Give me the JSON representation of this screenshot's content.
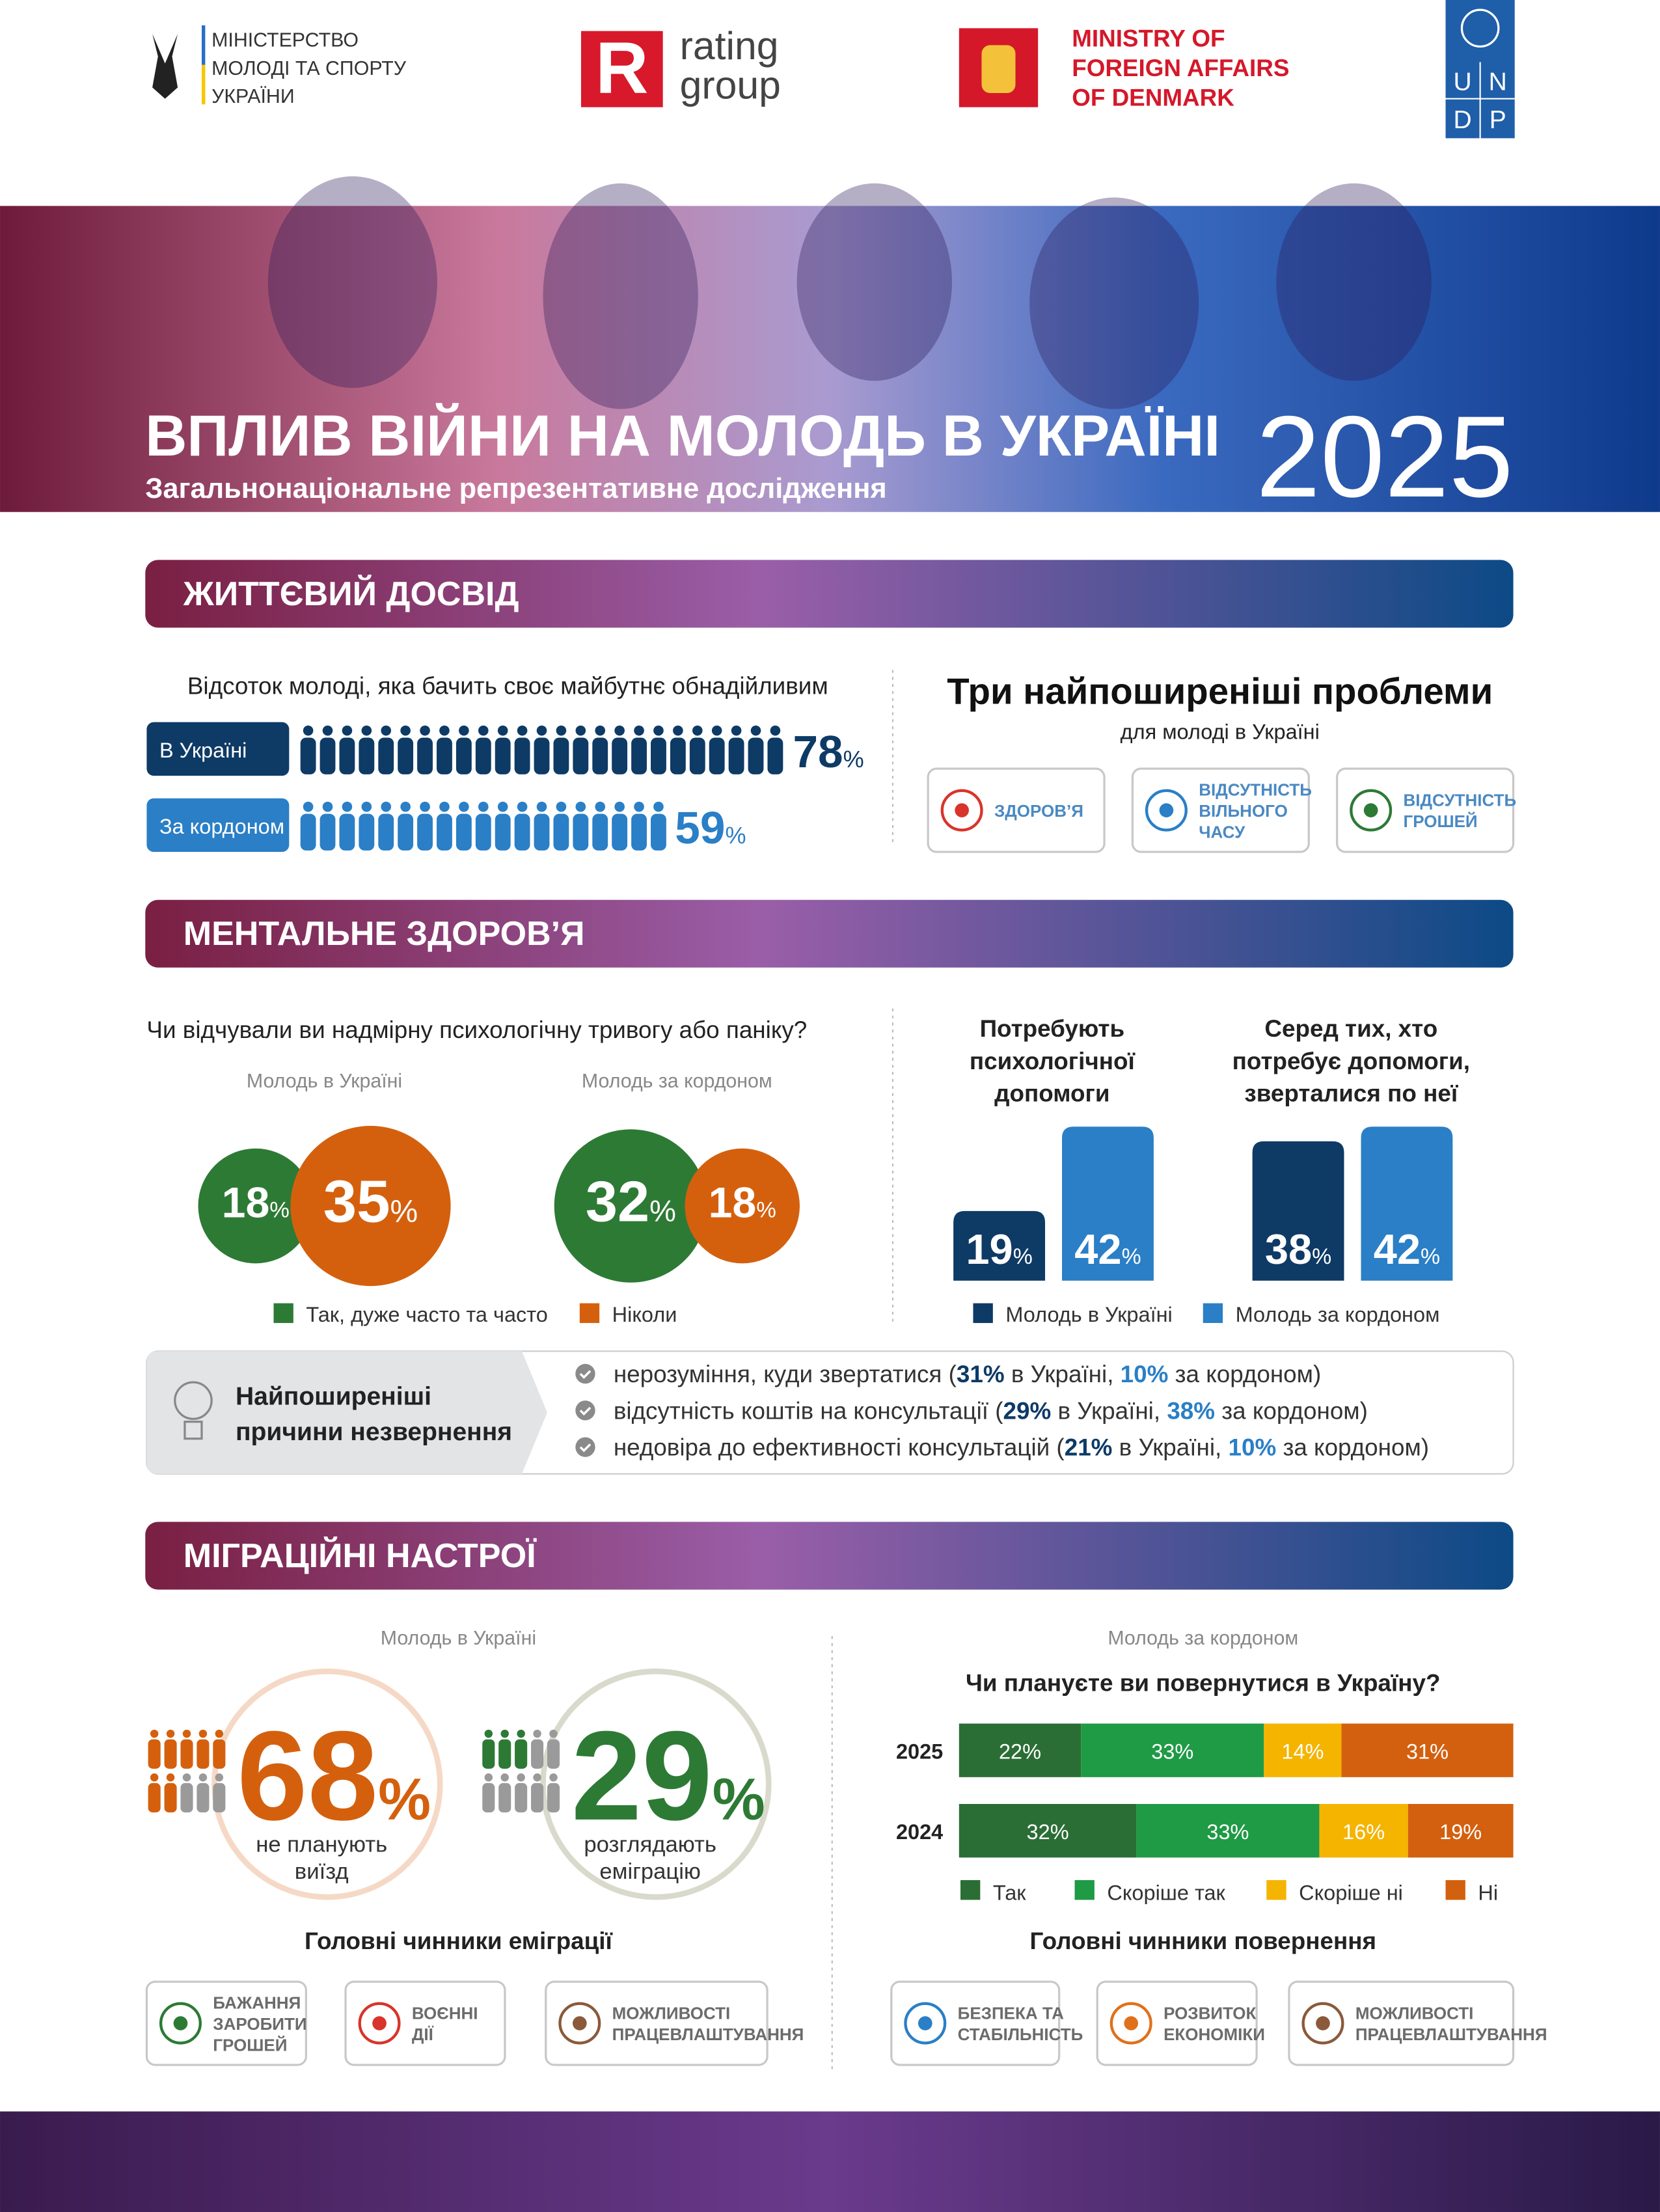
{
  "header": {
    "ministry": [
      "МІНІСТЕРСТВО",
      "МОЛОДІ ТА СПОРТУ",
      "УКРАЇНИ"
    ],
    "rating_mark": "R",
    "rating": [
      "rating",
      "group"
    ],
    "denmark": [
      "MINISTRY OF",
      "FOREIGN AFFAIRS",
      "OF DENMARK"
    ],
    "undp": [
      "U",
      "N",
      "D",
      "P"
    ]
  },
  "hero": {
    "title": "ВПЛИВ ВІЙНИ НА МОЛОДЬ В УКРАЇНІ",
    "subtitle": "Загальнонаціональне репрезентативне дослідження",
    "year": "2025"
  },
  "percent_sign": "%",
  "life": {
    "heading": "ЖИТТЄВИЙ ДОСВІД",
    "hope": {
      "title": "Відсоток молоді, яка бачить своє майбутнє обнадійливим",
      "rows": [
        {
          "label": "В Україні",
          "value": 78,
          "color": "#0e3a66"
        },
        {
          "label": "За кордоном",
          "value": 59,
          "color": "#2a7fc6"
        }
      ]
    },
    "problems": {
      "title": "Три найпоширеніші проблеми",
      "subtitle": "для молоді в Україні",
      "items": [
        [
          "ЗДОРОВ’Я"
        ],
        [
          "ВІДСУТНІСТЬ",
          "ВІЛЬНОГО",
          "ЧАСУ"
        ],
        [
          "ВІДСУТНІСТЬ",
          "ГРОШЕЙ"
        ]
      ]
    }
  },
  "mental": {
    "heading": "МЕНТАЛЬНЕ ЗДОРОВ’Я",
    "anxiety": {
      "question": "Чи відчували ви надмірну психологічну тривогу або паніку?",
      "groups": [
        {
          "name": "Молодь в Україні",
          "values": [
            18,
            35
          ]
        },
        {
          "name": "Молодь за кордоном",
          "values": [
            32,
            18
          ]
        }
      ],
      "legend": [
        {
          "name": "Так, дуже часто та часто",
          "color": "#2d7a35"
        },
        {
          "name": "Ніколи",
          "color": "#d4600e"
        }
      ]
    },
    "help": {
      "charts": [
        {
          "title": [
            "Потребують",
            "психологічної",
            "допомоги"
          ],
          "values": [
            19,
            42
          ]
        },
        {
          "title": [
            "Серед тих, хто",
            "потребує допомоги,",
            "зверталися по неї"
          ],
          "values": [
            38,
            42
          ]
        }
      ],
      "legend": [
        {
          "name": "Молодь в Україні",
          "color": "#0e3a66"
        },
        {
          "name": "Молодь за кордоном",
          "color": "#2a7fc6"
        }
      ]
    },
    "reasons": {
      "title": [
        "Найпоширеніші",
        "причини незвернення"
      ],
      "items": [
        {
          "lead": "нерозуміння, куди звертатися (",
          "ukraine": "31%",
          "ukraine_suffix": " в Україні, ",
          "abroad": "10%",
          "abroad_suffix": " за кордоном)"
        },
        {
          "lead": "відсутність коштів на консультації (",
          "ukraine": "29%",
          "ukraine_suffix": " в Україні, ",
          "abroad": "38%",
          "abroad_suffix": " за кордоном)"
        },
        {
          "lead": "недовіра до ефективності консультацій (",
          "ukraine": "21%",
          "ukraine_suffix": " в Україні, ",
          "abroad": "10%",
          "abroad_suffix": " за кордоном)"
        }
      ]
    }
  },
  "migration": {
    "heading": "МІГРАЦІЙНІ НАСТРОЇ",
    "ukraine": {
      "title": "Молодь в Україні",
      "stats": [
        {
          "value": 68,
          "text": [
            "не планують",
            "виїзд"
          ],
          "color": "#d4600e"
        },
        {
          "value": 29,
          "text": [
            "розглядають",
            "еміграцію"
          ],
          "color": "#2d7a35"
        }
      ],
      "factors_title": "Головні чинники еміграції",
      "factors": [
        [
          "БАЖАННЯ",
          "ЗАРОБИТИ",
          "ГРОШЕЙ"
        ],
        [
          "ВОЄННІ",
          "ДІЇ"
        ],
        [
          "МОЖЛИВОСТІ",
          "ПРАЦЕВЛАШТУВАННЯ"
        ]
      ]
    },
    "abroad": {
      "title": "Молодь за кордоном",
      "chart": {
        "type": "stacked_bar",
        "title": "Чи плануєте ви повернутися в Україну?",
        "categories": [
          "2025",
          "2024"
        ],
        "series": [
          {
            "name": "Так",
            "color": "#2b6e35",
            "values": [
              22,
              32
            ],
            "value_labels": [
              "22%",
              "32%"
            ]
          },
          {
            "name": "Скоріше так",
            "color": "#1f9a45",
            "values": [
              33,
              33
            ],
            "value_labels": [
              "33%",
              "33%"
            ]
          },
          {
            "name": "Скоріше ні",
            "color": "#f4b400",
            "values": [
              14,
              16
            ],
            "value_labels": [
              "14%",
              "16%"
            ]
          },
          {
            "name": "Ні",
            "color": "#d3600f",
            "values": [
              31,
              19
            ],
            "value_labels": [
              "31%",
              "19%"
            ]
          }
        ]
      },
      "factors_title": "Головні чинники повернення",
      "factors": [
        [
          "БЕЗПЕКА ТА",
          "СТАБІЛЬНІСТЬ"
        ],
        [
          "РОЗВИТОК",
          "ЕКОНОМІКИ"
        ],
        [
          "МОЖЛИВОСТІ",
          "ПРАЦЕВЛАШТУВАННЯ"
        ]
      ]
    }
  }
}
